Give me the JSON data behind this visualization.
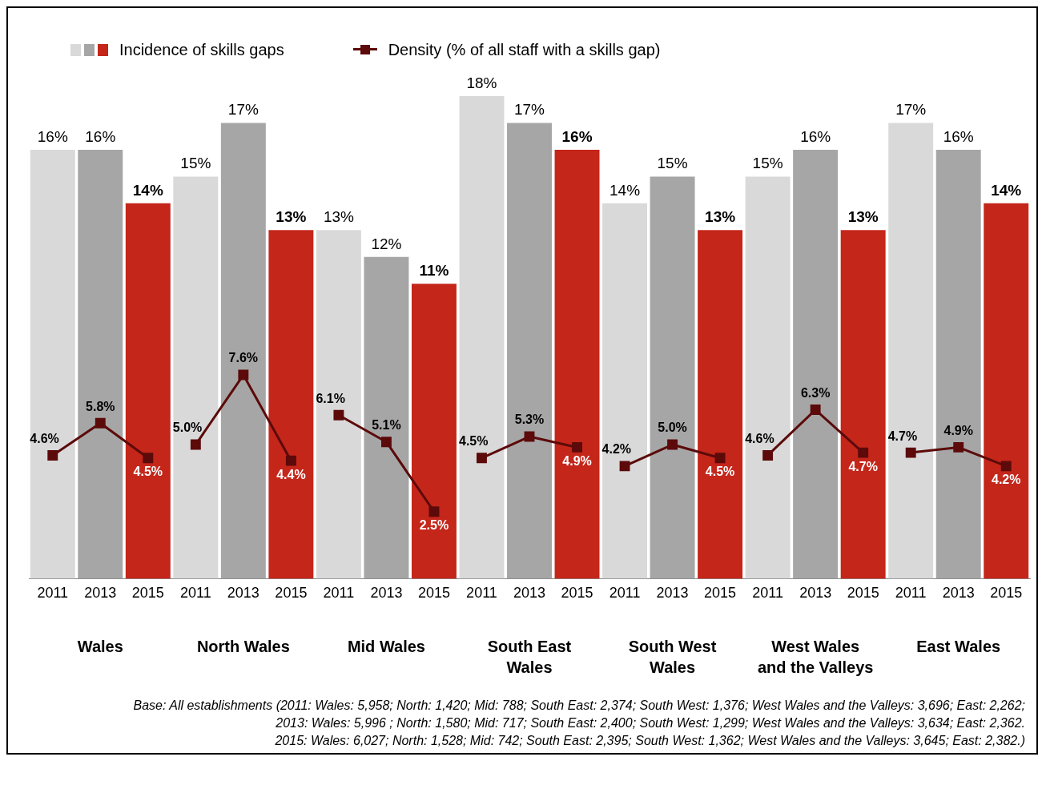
{
  "chart_data": {
    "type": "bar",
    "categories": [
      "2011",
      "2013",
      "2015",
      "2011",
      "2013",
      "2015",
      "2011",
      "2013",
      "2015",
      "2011",
      "2013",
      "2015",
      "2011",
      "2013",
      "2015",
      "2011",
      "2013",
      "2015",
      "2011",
      "2013",
      "2015"
    ],
    "series": [
      {
        "name": "Incidence of skills gaps",
        "colors": [
          "#d9d9d9",
          "#a6a6a6",
          "#c4261a",
          "#d9d9d9",
          "#a6a6a6",
          "#c4261a",
          "#d9d9d9",
          "#a6a6a6",
          "#c4261a",
          "#d9d9d9",
          "#a6a6a6",
          "#c4261a",
          "#d9d9d9",
          "#a6a6a6",
          "#c4261a",
          "#d9d9d9",
          "#a6a6a6",
          "#c4261a",
          "#d9d9d9",
          "#a6a6a6",
          "#c4261a"
        ],
        "values": [
          16,
          16,
          14,
          15,
          17,
          13,
          13,
          12,
          11,
          18,
          17,
          16,
          14,
          15,
          13,
          15,
          16,
          13,
          17,
          16,
          14
        ],
        "value_labels": [
          "16%",
          "16%",
          "14%",
          "15%",
          "17%",
          "13%",
          "13%",
          "12%",
          "11%",
          "18%",
          "17%",
          "16%",
          "14%",
          "15%",
          "13%",
          "15%",
          "16%",
          "13%",
          "17%",
          "16%",
          "14%"
        ]
      },
      {
        "name": "Density (% of all staff with a skills gap)",
        "type": "line",
        "color": "#5c0a0a",
        "values": [
          4.6,
          5.8,
          4.5,
          5.0,
          7.6,
          4.4,
          6.1,
          5.1,
          2.5,
          4.5,
          5.3,
          4.9,
          4.2,
          5.0,
          4.5,
          4.6,
          6.3,
          4.7,
          4.7,
          4.9,
          4.2
        ],
        "value_labels": [
          "4.6%",
          "5.8%",
          "4.5%",
          "5.0%",
          "7.6%",
          "4.4%",
          "6.1%",
          "5.1%",
          "2.5%",
          "4.5%",
          "5.3%",
          "4.9%",
          "4.2%",
          "5.0%",
          "4.5%",
          "4.6%",
          "6.3%",
          "4.7%",
          "4.7%",
          "4.9%",
          "4.2%"
        ]
      }
    ],
    "tick_labels": "x",
    "grid": false,
    "legend": "top left",
    "marker": "square",
    "annotations": [
      "Wales",
      "North Wales",
      "Mid Wales",
      "South East\nWales",
      "South West\nWales",
      "West Wales\nand the Valleys",
      "East Wales",
      "Base: All establishments (2011: Wales: 5,958; North: 1,420; Mid: 788; South East: 2,374; South West: 1,376; West Wales and the Valleys: 3,696; East: 2,262;\n2013: Wales: 5,996 ; North: 1,580; Mid: 717; South East: 2,400; South West: 1,299; West Wales and the Valleys: 3,634; East: 2,362.\n2015: Wales: 6,027; North: 1,528; Mid: 742; South East: 2,395; South West: 1,362; West Wales and the Valleys: 3,645; East: 2,382.)"
    ]
  }
}
